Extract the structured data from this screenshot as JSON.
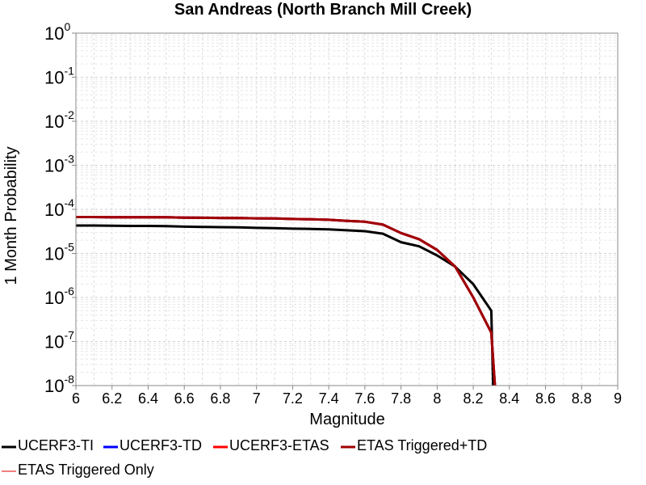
{
  "chart_data": {
    "type": "line",
    "title": "San Andreas (North Branch Mill Creek)",
    "xlabel": "Magnitude",
    "ylabel": "1 Month Probability",
    "xlim": [
      6,
      9
    ],
    "ylim": [
      1e-08,
      1
    ],
    "yscale": "log",
    "grid": true,
    "legend_position": "bottom",
    "xticks": [
      "6",
      "6.2",
      "6.4",
      "6.6",
      "6.8",
      "7",
      "7.2",
      "7.4",
      "7.6",
      "7.8",
      "8",
      "8.2",
      "8.4",
      "8.6",
      "8.8",
      "9"
    ],
    "yticks": [
      {
        "base": "10",
        "exp": "0"
      },
      {
        "base": "10",
        "exp": "-1"
      },
      {
        "base": "10",
        "exp": "-2"
      },
      {
        "base": "10",
        "exp": "-3"
      },
      {
        "base": "10",
        "exp": "-4"
      },
      {
        "base": "10",
        "exp": "-5"
      },
      {
        "base": "10",
        "exp": "-6"
      },
      {
        "base": "10",
        "exp": "-7"
      },
      {
        "base": "10",
        "exp": "-8"
      }
    ],
    "series": [
      {
        "name": "UCERF3-TI",
        "color": "#000000",
        "x": [
          6.0,
          6.1,
          6.2,
          6.3,
          6.4,
          6.5,
          6.6,
          6.7,
          6.8,
          6.9,
          7.0,
          7.1,
          7.2,
          7.3,
          7.4,
          7.5,
          7.6,
          7.7,
          7.8,
          7.9,
          8.0,
          8.1,
          8.2,
          8.3,
          8.31
        ],
        "y": [
          4.3e-05,
          4.3e-05,
          4.25e-05,
          4.2e-05,
          4.2e-05,
          4.15e-05,
          4.05e-05,
          4e-05,
          3.95e-05,
          3.9e-05,
          3.8e-05,
          3.75e-05,
          3.65e-05,
          3.6e-05,
          3.5e-05,
          3.35e-05,
          3.2e-05,
          2.8e-05,
          1.8e-05,
          1.45e-05,
          9e-06,
          5e-06,
          2e-06,
          5e-07,
          1e-08
        ]
      },
      {
        "name": "UCERF3-TD",
        "color": "#0000ff",
        "x": [
          6.0,
          6.1,
          6.2,
          6.3,
          6.4,
          6.5,
          6.6,
          6.7,
          6.8,
          6.9,
          7.0,
          7.1,
          7.2,
          7.3,
          7.4,
          7.5,
          7.6,
          7.7,
          7.8,
          7.9,
          8.0,
          8.1,
          8.2,
          8.3,
          8.32
        ],
        "y": [
          6.7e-05,
          6.7e-05,
          6.65e-05,
          6.65e-05,
          6.6e-05,
          6.6e-05,
          6.5e-05,
          6.45e-05,
          6.4e-05,
          6.35e-05,
          6.25e-05,
          6.2e-05,
          6.05e-05,
          5.95e-05,
          5.8e-05,
          5.5e-05,
          5.25e-05,
          4.5e-05,
          2.9e-05,
          2.1e-05,
          1.2e-05,
          5e-06,
          1e-06,
          1.6e-07,
          1e-08
        ]
      },
      {
        "name": "UCERF3-ETAS",
        "color": "#ff0000",
        "x": [
          6.0,
          6.1,
          6.2,
          6.3,
          6.4,
          6.5,
          6.6,
          6.7,
          6.8,
          6.9,
          7.0,
          7.1,
          7.2,
          7.3,
          7.4,
          7.5,
          7.6,
          7.7,
          7.8,
          7.9,
          8.0,
          8.1,
          8.2,
          8.3,
          8.32
        ],
        "y": [
          6.7e-05,
          6.7e-05,
          6.65e-05,
          6.65e-05,
          6.6e-05,
          6.6e-05,
          6.5e-05,
          6.45e-05,
          6.4e-05,
          6.35e-05,
          6.25e-05,
          6.2e-05,
          6.05e-05,
          5.95e-05,
          5.8e-05,
          5.5e-05,
          5.25e-05,
          4.5e-05,
          2.9e-05,
          2.1e-05,
          1.2e-05,
          5e-06,
          1e-06,
          1.6e-07,
          1e-08
        ]
      },
      {
        "name": "ETAS Triggered+TD",
        "color": "#a00000",
        "x": [
          6.0,
          6.1,
          6.2,
          6.3,
          6.4,
          6.5,
          6.6,
          6.7,
          6.8,
          6.9,
          7.0,
          7.1,
          7.2,
          7.3,
          7.4,
          7.5,
          7.6,
          7.7,
          7.8,
          7.9,
          8.0,
          8.1,
          8.2,
          8.3,
          8.32
        ],
        "y": [
          6.7e-05,
          6.7e-05,
          6.65e-05,
          6.65e-05,
          6.6e-05,
          6.6e-05,
          6.5e-05,
          6.45e-05,
          6.4e-05,
          6.35e-05,
          6.25e-05,
          6.2e-05,
          6.05e-05,
          5.95e-05,
          5.8e-05,
          5.5e-05,
          5.25e-05,
          4.5e-05,
          2.9e-05,
          2.1e-05,
          1.2e-05,
          5e-06,
          1e-06,
          1.6e-07,
          1e-08
        ]
      },
      {
        "name": "ETAS Triggered Only",
        "color": "#f08080",
        "x": [],
        "y": []
      }
    ]
  }
}
